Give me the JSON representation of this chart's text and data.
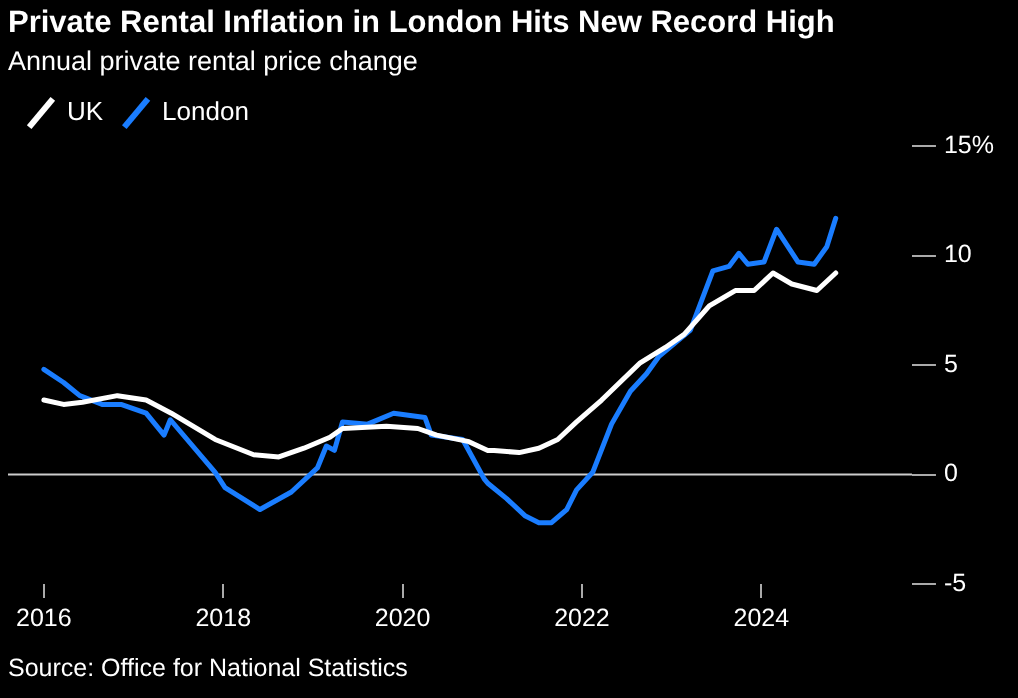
{
  "chart_data": {
    "type": "line",
    "title": "Private Rental Inflation in London Hits New Record High",
    "subtitle": "Annual private rental price change",
    "annotations": [
      "Source: Office for National Statistics"
    ],
    "xlim": [
      2015.6,
      2025.68
    ],
    "xticks": [
      2016,
      2018,
      2020,
      2022,
      2024
    ],
    "ylim": [
      -5,
      15
    ],
    "yticks": [
      {
        "value": -5,
        "label": "-5"
      },
      {
        "value": 0,
        "label": "0"
      },
      {
        "value": 5,
        "label": "5"
      },
      {
        "value": 10,
        "label": "10"
      },
      {
        "value": 15,
        "label": "15%"
      }
    ],
    "grid": false,
    "legend": "top left",
    "marker": "none",
    "line_style": "solid",
    "ref_lines": [
      {
        "axis": "y",
        "value": 0,
        "color": "#cccccc"
      }
    ],
    "series": [
      {
        "name": "UK",
        "color": "#ffffff",
        "x": [
          2016.0,
          2016.22,
          2016.43,
          2016.82,
          2017.14,
          2017.42,
          2017.91,
          2018.34,
          2018.62,
          2018.9,
          2019.19,
          2019.33,
          2019.82,
          2020.17,
          2020.38,
          2020.74,
          2020.95,
          2021.02,
          2021.3,
          2021.52,
          2021.73,
          2021.94,
          2022.22,
          2022.65,
          2022.93,
          2023.14,
          2023.42,
          2023.71,
          2023.92,
          2024.13,
          2024.34,
          2024.62,
          2024.83
        ],
        "values": [
          3.4,
          3.2,
          3.3,
          3.6,
          3.4,
          2.8,
          1.6,
          0.9,
          0.8,
          1.2,
          1.7,
          2.1,
          2.2,
          2.1,
          1.8,
          1.5,
          1.1,
          1.1,
          1.0,
          1.2,
          1.6,
          2.4,
          3.4,
          5.1,
          5.8,
          6.4,
          7.7,
          8.4,
          8.4,
          9.2,
          8.7,
          8.4,
          9.2
        ]
      },
      {
        "name": "London",
        "color": "#1a7dff",
        "x": [
          2016.0,
          2016.22,
          2016.4,
          2016.65,
          2016.86,
          2017.14,
          2017.34,
          2017.41,
          2017.91,
          2018.02,
          2018.41,
          2018.76,
          2019.05,
          2019.15,
          2019.24,
          2019.33,
          2019.61,
          2019.9,
          2020.25,
          2020.32,
          2020.67,
          2020.91,
          2020.95,
          2021.16,
          2021.37,
          2021.52,
          2021.66,
          2021.83,
          2021.94,
          2022.12,
          2022.33,
          2022.54,
          2022.72,
          2022.86,
          2023.21,
          2023.46,
          2023.64,
          2023.75,
          2023.85,
          2024.03,
          2024.17,
          2024.41,
          2024.59,
          2024.73,
          2024.83
        ],
        "values": [
          4.8,
          4.2,
          3.6,
          3.2,
          3.2,
          2.8,
          1.8,
          2.5,
          0.1,
          -0.6,
          -1.6,
          -0.8,
          0.3,
          1.3,
          1.1,
          2.4,
          2.3,
          2.8,
          2.6,
          1.8,
          1.6,
          -0.2,
          -0.4,
          -1.1,
          -1.9,
          -2.2,
          -2.2,
          -1.6,
          -0.7,
          0.1,
          2.3,
          3.8,
          4.6,
          5.4,
          6.6,
          9.3,
          9.5,
          10.1,
          9.6,
          9.7,
          11.2,
          9.7,
          9.6,
          10.4,
          11.7
        ]
      }
    ]
  }
}
